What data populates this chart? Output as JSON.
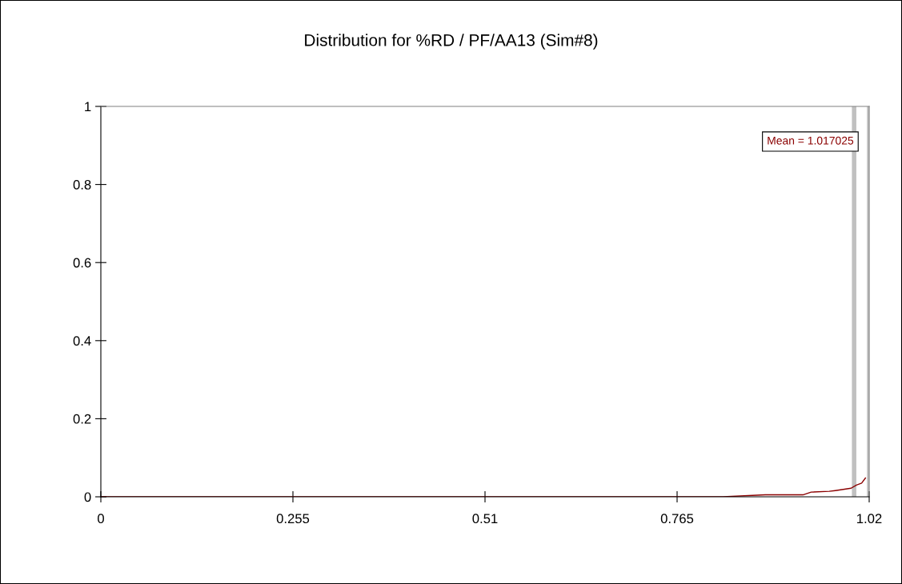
{
  "chart_data": {
    "type": "line",
    "title": "Distribution for %RD / PF/AA13 (Sim#8)",
    "series": [
      {
        "color": "#8b0000",
        "x": [
          0,
          0.826,
          0.882,
          0.932,
          0.943,
          0.967,
          0.975,
          0.996,
          1.003,
          1.01,
          1.015
        ],
        "values": [
          0,
          0,
          0.005,
          0.005,
          0.012,
          0.014,
          0.016,
          0.022,
          0.03,
          0.035,
          0.048
        ]
      }
    ],
    "xlim": [
      0,
      1.02
    ],
    "xticks": [
      0,
      0.255,
      0.51,
      0.765,
      1.02
    ],
    "ylim": [
      0,
      1
    ],
    "yticks": [
      0,
      0.2,
      0.4,
      0.6,
      0.8,
      1
    ],
    "ref_lines": [
      {
        "axis": "x",
        "value": 1.0,
        "color": "#c0c0c0"
      },
      {
        "axis": "x",
        "value": 1.02,
        "color": "#c0c0c0"
      }
    ],
    "annotations": [
      {
        "text": "Mean = 1.017025",
        "x": 1.017025,
        "y": 0.91
      }
    ],
    "marker": "none",
    "line_style": "solid"
  }
}
